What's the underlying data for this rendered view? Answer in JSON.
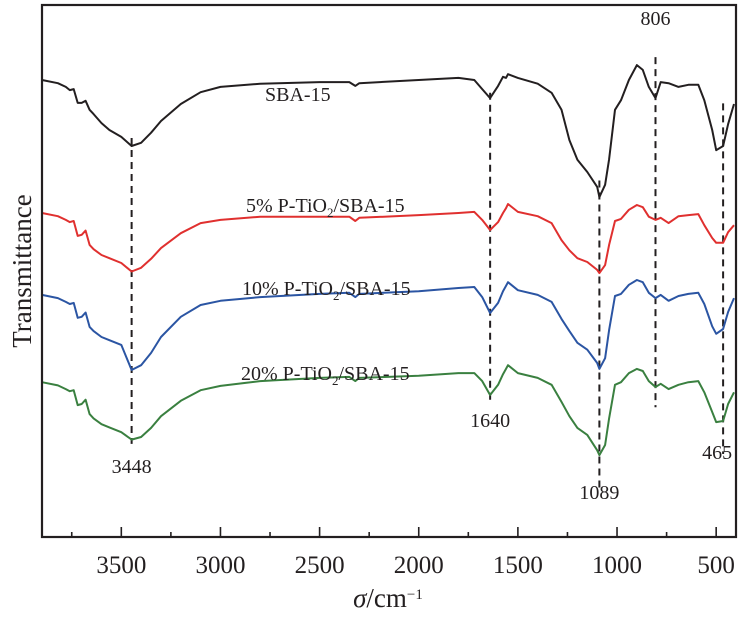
{
  "chart_data": {
    "type": "line",
    "title": "",
    "xlabel": "σ/cm⁻¹",
    "xlabel_parts": {
      "symbol": "σ",
      "unit": "/cm",
      "exponent": "−1"
    },
    "ylabel": "Transmittance",
    "xlim": [
      3900,
      400
    ],
    "ylim": [
      0,
      100
    ],
    "x_reversed": true,
    "y_ticks_shown": false,
    "grid": false,
    "legend": "inline labels above each curve",
    "x_ticks_major": [
      3500,
      3000,
      2500,
      2000,
      1500,
      1000,
      500
    ],
    "x_tick_labels": [
      "3500",
      "3000",
      "2500",
      "2000",
      "1500",
      "1000",
      "500"
    ],
    "x_ticks_minor": [
      3750,
      3250,
      2750,
      2250,
      1750,
      1250,
      750
    ],
    "x": [
      3900,
      3820,
      3780,
      3760,
      3740,
      3720,
      3700,
      3680,
      3660,
      3640,
      3600,
      3560,
      3500,
      3448,
      3400,
      3350,
      3300,
      3200,
      3100,
      3000,
      2800,
      2500,
      2350,
      2320,
      2300,
      2000,
      1800,
      1720,
      1680,
      1640,
      1600,
      1575,
      1560,
      1550,
      1500,
      1400,
      1330,
      1280,
      1240,
      1200,
      1150,
      1100,
      1089,
      1060,
      1040,
      1010,
      980,
      940,
      900,
      870,
      840,
      806,
      780,
      740,
      690,
      640,
      590,
      560,
      520,
      500,
      465,
      440,
      410
    ],
    "series": [
      {
        "name": "SBA-15",
        "label": "SBA-15",
        "color": "#231f20",
        "y": [
          85.9,
          85.3,
          84.6,
          84.0,
          84.2,
          81.6,
          81.6,
          82.0,
          80.3,
          79.5,
          77.8,
          76.5,
          75.2,
          73.5,
          74.1,
          76.0,
          78.2,
          81.4,
          83.6,
          84.6,
          85.2,
          85.5,
          85.5,
          84.8,
          85.3,
          85.9,
          86.3,
          85.9,
          84.2,
          82.5,
          84.8,
          86.5,
          86.3,
          87.0,
          86.3,
          85.2,
          83.5,
          80.3,
          74.6,
          70.9,
          68.6,
          65.8,
          63.9,
          66.2,
          71.0,
          80.3,
          82.1,
          85.9,
          88.7,
          87.8,
          84.6,
          82.5,
          85.5,
          85.3,
          84.6,
          85.0,
          85.0,
          82.1,
          76.5,
          72.7,
          73.5,
          77.6,
          81.4
        ]
      },
      {
        "name": "5% P-TiO2/SBA-15",
        "label_prefix": "5% P-TiO",
        "label_sub": "2",
        "label_suffix": "/SBA-15",
        "color": "#e0302f",
        "y": [
          60.9,
          60.3,
          59.6,
          59.2,
          59.4,
          56.6,
          56.8,
          57.6,
          54.9,
          54.1,
          53.0,
          52.4,
          51.5,
          49.9,
          50.6,
          52.3,
          54.3,
          57.1,
          59.0,
          59.6,
          60.2,
          60.2,
          60.2,
          59.4,
          60.0,
          60.5,
          60.9,
          61.1,
          59.6,
          57.7,
          59.2,
          60.9,
          61.8,
          62.6,
          61.1,
          60.3,
          59.0,
          55.8,
          53.9,
          52.4,
          51.7,
          50.2,
          49.6,
          51.1,
          54.9,
          59.4,
          59.8,
          61.5,
          62.4,
          62.0,
          60.2,
          59.6,
          60.0,
          59.0,
          60.3,
          60.5,
          60.7,
          58.6,
          56.2,
          55.3,
          55.3,
          57.3,
          58.6
        ]
      },
      {
        "name": "10% P-TiO2/SBA-15",
        "label_prefix": "10% P-TiO",
        "label_sub": "2",
        "label_suffix": "/SBA-15",
        "color": "#2b55a3",
        "y": [
          45.5,
          44.9,
          44.2,
          43.8,
          44.0,
          41.2,
          41.4,
          42.2,
          39.5,
          38.7,
          37.6,
          37.0,
          36.1,
          31.4,
          32.3,
          34.6,
          37.6,
          41.4,
          43.6,
          44.4,
          45.1,
          45.7,
          45.9,
          45.1,
          45.7,
          46.2,
          46.8,
          47.0,
          45.1,
          42.1,
          44.0,
          46.2,
          47.2,
          47.9,
          46.4,
          45.5,
          44.2,
          41.0,
          38.7,
          36.5,
          35.2,
          32.7,
          31.6,
          33.6,
          38.9,
          45.3,
          45.7,
          47.4,
          48.3,
          47.9,
          45.9,
          44.9,
          45.5,
          44.4,
          45.3,
          45.7,
          45.9,
          43.8,
          39.6,
          38.2,
          39.1,
          42.3,
          44.9
        ]
      },
      {
        "name": "20% P-TiO2/SBA-15",
        "label_prefix": "20% P-TiO",
        "label_sub": "2",
        "label_suffix": "/SBA-15",
        "color": "#3a8040",
        "y": [
          29.1,
          28.5,
          27.8,
          27.4,
          27.6,
          24.8,
          25.0,
          25.8,
          23.1,
          22.3,
          21.2,
          20.6,
          19.7,
          18.3,
          18.8,
          20.5,
          22.7,
          25.6,
          27.6,
          28.4,
          29.3,
          29.9,
          30.1,
          29.3,
          29.9,
          30.3,
          30.8,
          30.8,
          29.3,
          26.7,
          28.6,
          30.6,
          31.6,
          32.3,
          30.8,
          29.9,
          28.6,
          25.4,
          22.7,
          20.5,
          19.2,
          16.3,
          15.4,
          17.3,
          22.3,
          28.6,
          29.1,
          30.8,
          31.6,
          31.2,
          29.3,
          28.2,
          28.8,
          27.8,
          28.6,
          29.1,
          29.3,
          27.2,
          23.5,
          21.6,
          21.8,
          25.0,
          27.2
        ]
      }
    ],
    "annotations": [
      {
        "x": 3448,
        "label": "3448",
        "y_from": 75.0,
        "y_to": 17.5
      },
      {
        "x": 1640,
        "label": "1640",
        "y_from": 83.5,
        "y_to": 25.8
      },
      {
        "x": 1089,
        "label": "1089",
        "y_from": 67.0,
        "y_to": 8.5
      },
      {
        "x": 806,
        "label": "806",
        "y_from": 90.2,
        "y_to": 24.4
      },
      {
        "x": 465,
        "label": "465",
        "y_from": 81.5,
        "y_to": 15.6
      }
    ]
  }
}
